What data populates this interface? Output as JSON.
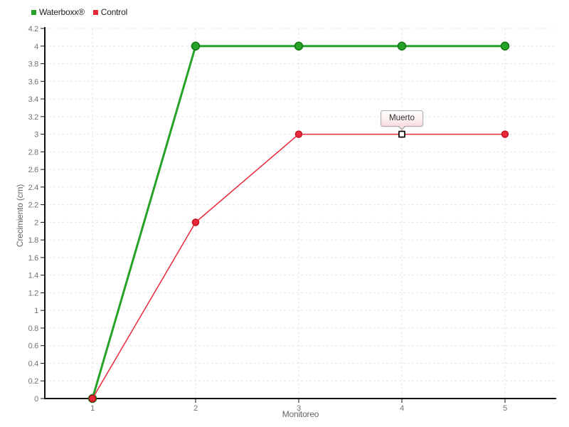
{
  "legend": {
    "items": [
      {
        "label": "Waterboxx®"
      },
      {
        "label": "Control"
      }
    ]
  },
  "chart_data": {
    "type": "line",
    "x": [
      1,
      2,
      3,
      4,
      5
    ],
    "xticks": [
      1,
      2,
      3,
      4,
      5
    ],
    "series": [
      {
        "name": "Waterboxx®",
        "values": [
          0,
          4,
          4,
          4,
          4
        ],
        "color": "#26a326",
        "point_border": "#107610",
        "line_width": 3,
        "point_radius": 5.5
      },
      {
        "name": "Control",
        "values": [
          0,
          2,
          3,
          3,
          3
        ],
        "color": "#e9293a",
        "point_border": "#c51322",
        "line_width": 1.5,
        "point_radius": 4.5
      }
    ],
    "title": "",
    "xlabel": "Monitoreo",
    "ylabel": "Crecimiento (cm)",
    "ylim": [
      0,
      4.2
    ],
    "ytick_step": 0.2,
    "grid": true,
    "grid_color": "#e5e5e5",
    "axis_color": "#111111",
    "legend_position": "top-left",
    "annotation": {
      "text": "Muerto",
      "x": 4,
      "y": 3,
      "marker": "white-square-black-border"
    }
  }
}
